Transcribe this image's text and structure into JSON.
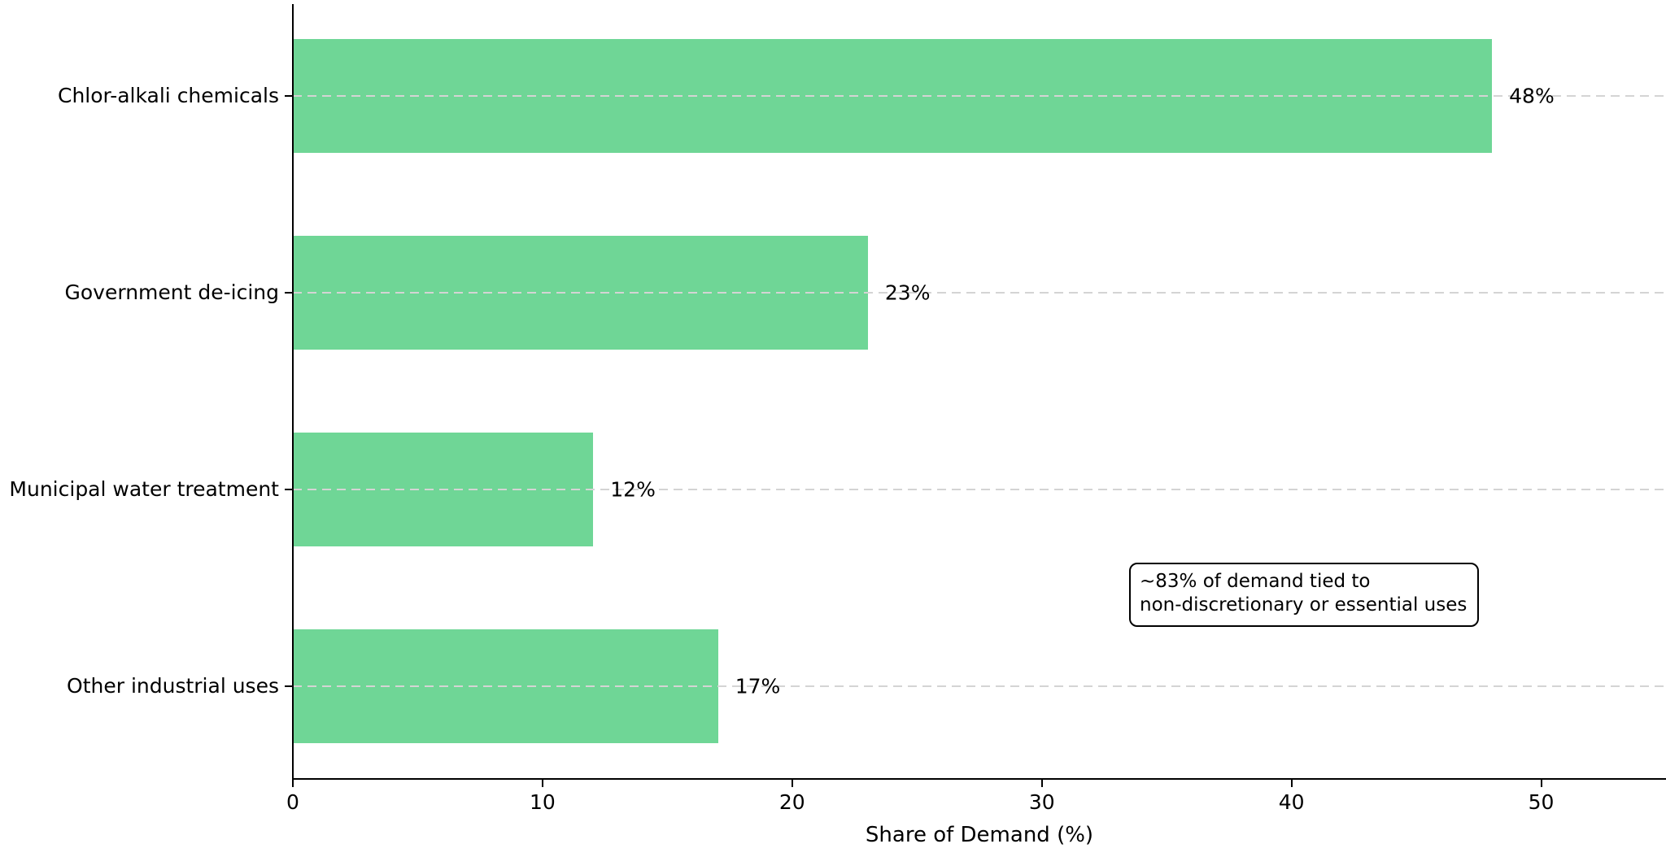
{
  "chart_data": {
    "type": "bar",
    "orientation": "horizontal",
    "title": "",
    "categories": [
      "Chlor-alkali chemicals",
      "Government de-icing",
      "Municipal water treatment",
      "Other industrial uses"
    ],
    "values": [
      48,
      23,
      12,
      17
    ],
    "value_labels": [
      "48%",
      "23%",
      "12%",
      "17%"
    ],
    "xlabel": "Share of Demand (%)",
    "ylabel": "",
    "xlim": [
      0,
      55
    ],
    "xticks": [
      0,
      10,
      20,
      30,
      40,
      50
    ],
    "xtick_labels": [
      "0",
      "10",
      "20",
      "30",
      "40",
      "50"
    ],
    "grid": "horizontal dashed gridlines at each category, drawn over bars",
    "legend": "none",
    "bar_color": "#6FD696",
    "gridline_color": "#d4d4d4",
    "axis_color": "#000000",
    "annotation": {
      "line1": "~83% of demand tied to",
      "line2": "non-discretionary or essential uses"
    }
  }
}
